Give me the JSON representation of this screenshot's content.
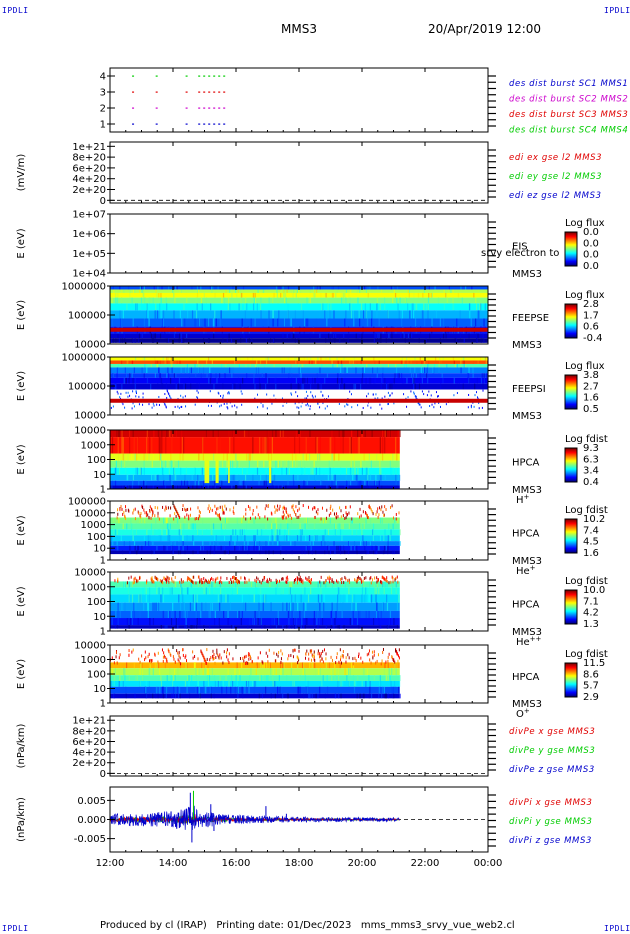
{
  "corners": {
    "tl": "IPDLI",
    "tr": "IPDLI",
    "bl": "IPDLI",
    "br": "IPDLI"
  },
  "header": {
    "spacecraft": "MMS3",
    "date": "20/Apr/2019 12:00"
  },
  "footer": {
    "produced_by": "Produced by cl (IRAP)",
    "printing_date": "Printing date: 01/Dec/2023",
    "script": "mms_mms3_srvy_vue_web2.cl"
  },
  "colors": {
    "red": "#e00000",
    "green": "#00cc00",
    "blue": "#0000cc",
    "magenta": "#cc00cc"
  },
  "chart_data": [
    {
      "id": "burst",
      "type": "scatter",
      "ylabel": "",
      "yticks": [
        "1",
        "2",
        "3",
        "4"
      ],
      "ylim": [
        0.5,
        4.5
      ],
      "legend": [
        {
          "text": "des dist burst SC1 MMS1",
          "color": "#0000cc"
        },
        {
          "text": "des dist burst SC2 MMS2",
          "color": "#cc00cc"
        },
        {
          "text": "des dist burst SC3 MMS3",
          "color": "#e00000"
        },
        {
          "text": "des dist burst SC4 MMS4",
          "color": "#00cc00"
        }
      ],
      "series": [
        {
          "level": 4,
          "color": "#00cc00",
          "intervals": [
            [
              0.7,
              0.8
            ],
            [
              1.45,
              1.5
            ],
            [
              2.4,
              2.45
            ],
            [
              2.8,
              3.7
            ],
            [
              19.1,
              19.15
            ]
          ]
        },
        {
          "level": 3,
          "color": "#e00000",
          "intervals": [
            [
              0.7,
              0.8
            ],
            [
              1.45,
              1.5
            ],
            [
              2.4,
              2.45
            ],
            [
              2.8,
              3.7
            ],
            [
              19.1,
              19.15
            ]
          ]
        },
        {
          "level": 2,
          "color": "#cc00cc",
          "intervals": [
            [
              0.7,
              0.8
            ],
            [
              1.45,
              1.5
            ],
            [
              2.4,
              2.45
            ],
            [
              2.8,
              3.7
            ],
            [
              19.1,
              19.15
            ]
          ]
        },
        {
          "level": 1,
          "color": "#0000cc",
          "intervals": [
            [
              0.7,
              0.8
            ],
            [
              1.45,
              1.5
            ],
            [
              2.4,
              2.45
            ],
            [
              2.8,
              3.7
            ]
          ]
        }
      ]
    },
    {
      "id": "edi",
      "type": "line",
      "ylabel": "(mV/m)",
      "yticks": [
        "0",
        "2e+20",
        "4e+20",
        "6e+20",
        "8e+20",
        "1e+21"
      ],
      "ylim": [
        -5e+19,
        1.08e+21
      ],
      "legend": [
        {
          "text": "edi ex gse l2 MMS3",
          "color": "#e00000"
        },
        {
          "text": "edi ey gse l2 MMS3",
          "color": "#00cc00"
        },
        {
          "text": "edi ez gse l2 MMS3",
          "color": "#0000cc"
        }
      ],
      "zero_line": true
    },
    {
      "id": "eis",
      "type": "heatmap",
      "ylabel": "E (eV)",
      "yticks": [
        "1e+04",
        "1e+05",
        "1e+06",
        "1e+07"
      ],
      "log": true,
      "instrument": [
        "EIS",
        "MMS3"
      ],
      "overlay": "srvy electron to",
      "cbar_title": "Log flux",
      "cbar_ticks": [
        "0.0",
        "0.0",
        "0.0",
        "0.0"
      ],
      "coverage": [
        0,
        0
      ],
      "rows": []
    },
    {
      "id": "feepse",
      "type": "heatmap",
      "ylabel": "E (eV)",
      "yticks": [
        "10000",
        "100000",
        "1000000"
      ],
      "log": true,
      "instrument": [
        "FEEPSE",
        "MMS3"
      ],
      "cbar_title": "Log flux",
      "cbar_ticks": [
        "2.8",
        "1.7",
        "0.6",
        "-0.4"
      ],
      "coverage": [
        0,
        12
      ],
      "rows": [
        [
          0.0,
          0.06,
          0.2
        ],
        [
          0.06,
          0.12,
          0.55
        ],
        [
          0.12,
          0.2,
          0.62
        ],
        [
          0.2,
          0.3,
          0.5
        ],
        [
          0.3,
          0.42,
          0.38
        ],
        [
          0.42,
          0.56,
          0.3
        ],
        [
          0.56,
          0.7,
          0.22
        ],
        [
          0.7,
          0.82,
          0.15
        ],
        [
          0.82,
          0.9,
          0.08
        ],
        [
          0.9,
          0.98,
          0.02
        ]
      ],
      "baseline": true
    },
    {
      "id": "feepsi",
      "type": "heatmap",
      "ylabel": "E (eV)",
      "yticks": [
        "10000",
        "100000",
        "1000000"
      ],
      "log": true,
      "instrument": [
        "FEEPSI",
        "MMS3"
      ],
      "cbar_title": "Log flux",
      "cbar_ticks": [
        "3.8",
        "2.7",
        "1.6",
        "0.5"
      ],
      "coverage": [
        0,
        12
      ],
      "rows": [
        [
          0.0,
          0.06,
          0.62
        ],
        [
          0.06,
          0.12,
          0.8
        ],
        [
          0.12,
          0.18,
          0.45
        ],
        [
          0.18,
          0.28,
          0.25
        ],
        [
          0.28,
          0.36,
          0.18
        ],
        [
          0.36,
          0.46,
          0.12
        ],
        [
          0.46,
          0.56,
          0.08
        ]
      ],
      "speckle": [
        0.56,
        0.88
      ],
      "baseline": true
    },
    {
      "id": "hpca_h",
      "type": "heatmap",
      "ylabel": "E (eV)",
      "yticks": [
        "1",
        "10",
        "100",
        "1000",
        "10000"
      ],
      "log": true,
      "instrument": [
        "HPCA",
        "MMS3",
        "H+"
      ],
      "cbar_title": "Log fdist",
      "cbar_ticks": [
        "9.3",
        "6.3",
        "3.4",
        "0.4"
      ],
      "coverage": [
        0,
        9.2
      ],
      "rows": [
        [
          0.0,
          0.12,
          0.92
        ],
        [
          0.12,
          0.4,
          0.86
        ],
        [
          0.4,
          0.52,
          0.6
        ],
        [
          0.52,
          0.64,
          0.5
        ],
        [
          0.64,
          0.76,
          0.38
        ],
        [
          0.76,
          0.86,
          0.3
        ],
        [
          0.86,
          0.94,
          0.2
        ],
        [
          0.94,
          1.0,
          0.08
        ]
      ]
    },
    {
      "id": "hpca_he",
      "type": "heatmap",
      "ylabel": "E (eV)",
      "yticks": [
        "1",
        "10",
        "100",
        "1000",
        "10000",
        "100000"
      ],
      "log": true,
      "instrument": [
        "HPCA",
        "MMS3",
        "He+"
      ],
      "cbar_title": "Log fdist",
      "cbar_ticks": [
        "10.2",
        "7.4",
        "4.5",
        "1.6"
      ],
      "coverage": [
        0,
        9.2
      ],
      "rows": [
        [
          0.28,
          0.38,
          0.5
        ],
        [
          0.38,
          0.48,
          0.46
        ],
        [
          0.48,
          0.58,
          0.4
        ],
        [
          0.58,
          0.68,
          0.33
        ],
        [
          0.68,
          0.76,
          0.25
        ],
        [
          0.76,
          0.84,
          0.15
        ],
        [
          0.84,
          0.9,
          0.05
        ]
      ],
      "speckle": [
        0.05,
        0.28
      ]
    },
    {
      "id": "hpca_hepp",
      "type": "heatmap",
      "ylabel": "E (eV)",
      "yticks": [
        "1",
        "10",
        "100",
        "1000",
        "10000"
      ],
      "log": true,
      "instrument": [
        "HPCA",
        "MMS3",
        "He++"
      ],
      "cbar_title": "Log fdist",
      "cbar_ticks": [
        "10.0",
        "7.1",
        "4.2",
        "1.3"
      ],
      "coverage": [
        0,
        9.2
      ],
      "rows": [
        [
          0.16,
          0.26,
          0.45
        ],
        [
          0.26,
          0.38,
          0.4
        ],
        [
          0.38,
          0.52,
          0.34
        ],
        [
          0.52,
          0.66,
          0.28
        ],
        [
          0.66,
          0.78,
          0.22
        ],
        [
          0.78,
          0.9,
          0.14
        ],
        [
          0.9,
          0.96,
          0.06
        ]
      ],
      "speckle": [
        0.06,
        0.16
      ]
    },
    {
      "id": "hpca_o",
      "type": "heatmap",
      "ylabel": "E (eV)",
      "yticks": [
        "1",
        "10",
        "100",
        "1000",
        "10000"
      ],
      "log": true,
      "instrument": [
        "HPCA",
        "MMS3",
        "O+"
      ],
      "cbar_title": "Log fdist",
      "cbar_ticks": [
        "11.5",
        "8.6",
        "5.7",
        "2.9"
      ],
      "coverage": [
        0,
        9.2
      ],
      "rows": [
        [
          0.3,
          0.4,
          0.7
        ],
        [
          0.4,
          0.52,
          0.55
        ],
        [
          0.52,
          0.62,
          0.45
        ],
        [
          0.62,
          0.72,
          0.35
        ],
        [
          0.72,
          0.84,
          0.2
        ],
        [
          0.84,
          0.92,
          0.08
        ]
      ],
      "speckle": [
        0.05,
        0.3
      ]
    },
    {
      "id": "divpe",
      "type": "line",
      "ylabel": "(nPa/km)",
      "yticks": [
        "0",
        "2e+20",
        "4e+20",
        "6e+20",
        "8e+20",
        "1e+21"
      ],
      "ylim": [
        -5e+19,
        1.08e+21
      ],
      "legend": [
        {
          "text": "divPe x gse MMS3",
          "color": "#e00000"
        },
        {
          "text": "divPe y gse MMS3",
          "color": "#00cc00"
        },
        {
          "text": "divPe z gse MMS3",
          "color": "#0000cc"
        }
      ],
      "zero_line": true
    },
    {
      "id": "divpi",
      "type": "line",
      "ylabel": "(nPa/km)",
      "yticks": [
        "-0.005",
        "0.000",
        "0.005"
      ],
      "ylim": [
        -0.0085,
        0.0085
      ],
      "yvalues": [
        -0.005,
        0.0,
        0.005
      ],
      "legend": [
        {
          "text": "divPi x gse MMS3",
          "color": "#e00000"
        },
        {
          "text": "divPi y gse MMS3",
          "color": "#00cc00"
        },
        {
          "text": "divPi z gse MMS3",
          "color": "#0000cc"
        }
      ],
      "zero_line": true,
      "envelope": [
        [
          0.0,
          0.0015
        ],
        [
          1.0,
          0.0018
        ],
        [
          2.0,
          0.0022
        ],
        [
          2.4,
          0.003
        ],
        [
          2.7,
          0.004
        ],
        [
          2.8,
          0.002
        ],
        [
          3.2,
          0.002
        ],
        [
          3.4,
          0.0015
        ],
        [
          4.0,
          0.0012
        ],
        [
          5.0,
          0.0009
        ],
        [
          6.0,
          0.0007
        ],
        [
          7.0,
          0.0006
        ],
        [
          8.0,
          0.0005
        ],
        [
          9.2,
          0.0005
        ]
      ],
      "spikes": [
        [
          2.55,
          0.007
        ],
        [
          2.6,
          -0.006
        ],
        [
          2.65,
          0.0075
        ],
        [
          3.2,
          0.004
        ],
        [
          3.3,
          -0.003
        ],
        [
          4.95,
          0.0035
        ],
        [
          5.6,
          0.0015
        ]
      ],
      "data_end": 9.2
    }
  ],
  "xaxis": {
    "ticks": [
      "12:00",
      "14:00",
      "16:00",
      "18:00",
      "20:00",
      "22:00",
      "00:00"
    ],
    "hours": [
      0,
      2,
      4,
      6,
      8,
      10,
      12
    ]
  }
}
